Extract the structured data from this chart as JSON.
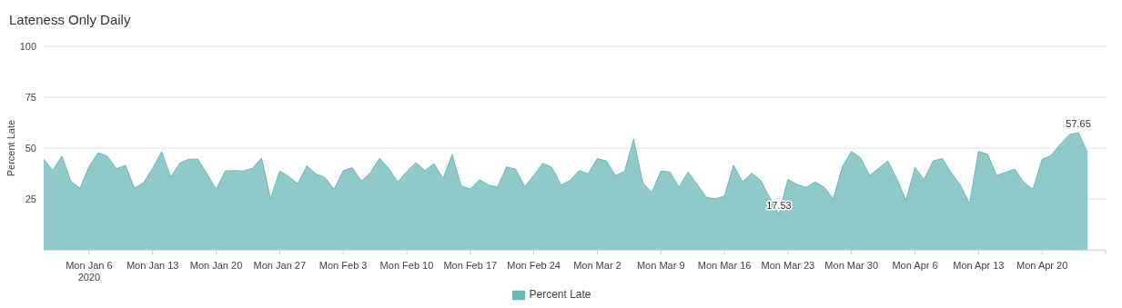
{
  "chart_data": {
    "type": "area",
    "title": "Lateness Only Daily",
    "ylabel": "Percent Late",
    "x": [
      "2020-01-01",
      "2020-01-02",
      "2020-01-03",
      "2020-01-04",
      "2020-01-05",
      "2020-01-06",
      "2020-01-07",
      "2020-01-08",
      "2020-01-09",
      "2020-01-10",
      "2020-01-11",
      "2020-01-12",
      "2020-01-13",
      "2020-01-14",
      "2020-01-15",
      "2020-01-16",
      "2020-01-17",
      "2020-01-18",
      "2020-01-19",
      "2020-01-20",
      "2020-01-21",
      "2020-01-22",
      "2020-01-23",
      "2020-01-24",
      "2020-01-25",
      "2020-01-26",
      "2020-01-27",
      "2020-01-28",
      "2020-01-29",
      "2020-01-30",
      "2020-01-31",
      "2020-02-01",
      "2020-02-02",
      "2020-02-03",
      "2020-02-04",
      "2020-02-05",
      "2020-02-06",
      "2020-02-07",
      "2020-02-08",
      "2020-02-09",
      "2020-02-10",
      "2020-02-11",
      "2020-02-12",
      "2020-02-13",
      "2020-02-14",
      "2020-02-15",
      "2020-02-16",
      "2020-02-17",
      "2020-02-18",
      "2020-02-19",
      "2020-02-20",
      "2020-02-21",
      "2020-02-22",
      "2020-02-23",
      "2020-02-24",
      "2020-02-25",
      "2020-02-26",
      "2020-02-27",
      "2020-02-28",
      "2020-02-29",
      "2020-03-01",
      "2020-03-02",
      "2020-03-03",
      "2020-03-04",
      "2020-03-05",
      "2020-03-06",
      "2020-03-07",
      "2020-03-08",
      "2020-03-09",
      "2020-03-10",
      "2020-03-11",
      "2020-03-12",
      "2020-03-13",
      "2020-03-14",
      "2020-03-15",
      "2020-03-16",
      "2020-03-17",
      "2020-03-18",
      "2020-03-19",
      "2020-03-20",
      "2020-03-21",
      "2020-03-22",
      "2020-03-23",
      "2020-03-24",
      "2020-03-25",
      "2020-03-26",
      "2020-03-27",
      "2020-03-28",
      "2020-03-29",
      "2020-03-30",
      "2020-03-31",
      "2020-04-01",
      "2020-04-02",
      "2020-04-03",
      "2020-04-04",
      "2020-04-05",
      "2020-04-06",
      "2020-04-07",
      "2020-04-08",
      "2020-04-09",
      "2020-04-10",
      "2020-04-11",
      "2020-04-12",
      "2020-04-13",
      "2020-04-14",
      "2020-04-15",
      "2020-04-16",
      "2020-04-17",
      "2020-04-18",
      "2020-04-19",
      "2020-04-20",
      "2020-04-21",
      "2020-04-22",
      "2020-04-23",
      "2020-04-24",
      "2020-04-25"
    ],
    "series": [
      {
        "name": "Percent Late",
        "color": "#6ab8b5",
        "values": [
          44.6,
          39.0,
          46.1,
          33.8,
          30.3,
          41.0,
          47.8,
          46.1,
          39.9,
          41.6,
          30.3,
          33.0,
          40.1,
          48.3,
          35.8,
          42.6,
          44.6,
          44.5,
          37.4,
          29.8,
          38.8,
          39.0,
          38.8,
          40.1,
          45.1,
          25.2,
          38.8,
          36.1,
          32.6,
          41.3,
          37.4,
          35.5,
          29.8,
          39.0,
          40.4,
          33.9,
          37.9,
          45.1,
          40.1,
          33.4,
          38.5,
          42.9,
          39.0,
          42.4,
          35.0,
          46.8,
          31.4,
          30.0,
          34.5,
          31.9,
          30.9,
          40.8,
          39.7,
          31.2,
          36.6,
          42.6,
          40.5,
          31.9,
          34.2,
          39.0,
          37.4,
          44.9,
          43.7,
          36.6,
          38.6,
          54.4,
          33.0,
          28.2,
          38.8,
          38.3,
          30.8,
          38.3,
          32.2,
          25.9,
          25.1,
          26.5,
          41.6,
          33.4,
          37.7,
          34.2,
          25.6,
          17.53,
          34.7,
          32.2,
          30.8,
          33.4,
          30.8,
          25.1,
          41.0,
          48.4,
          45.3,
          36.6,
          40.1,
          43.8,
          35.0,
          24.4,
          40.5,
          34.7,
          43.7,
          44.9,
          37.9,
          31.9,
          22.7,
          48.4,
          47.0,
          36.6,
          38.2,
          39.7,
          33.1,
          29.8,
          44.5,
          46.5,
          51.9,
          56.6,
          57.65,
          47.9
        ],
        "value_labels": [
          null,
          null,
          null,
          null,
          null,
          null,
          null,
          null,
          null,
          null,
          null,
          null,
          null,
          null,
          null,
          null,
          null,
          null,
          null,
          null,
          null,
          null,
          null,
          null,
          null,
          null,
          null,
          null,
          null,
          null,
          null,
          null,
          null,
          null,
          null,
          null,
          null,
          null,
          null,
          null,
          null,
          null,
          null,
          null,
          null,
          null,
          null,
          null,
          null,
          null,
          null,
          null,
          null,
          null,
          null,
          null,
          null,
          null,
          null,
          null,
          null,
          null,
          null,
          null,
          null,
          null,
          null,
          null,
          null,
          null,
          null,
          null,
          null,
          null,
          null,
          null,
          null,
          null,
          null,
          null,
          null,
          "17.53",
          null,
          null,
          null,
          null,
          null,
          null,
          null,
          null,
          null,
          null,
          null,
          null,
          null,
          null,
          null,
          null,
          null,
          null,
          null,
          null,
          null,
          null,
          null,
          null,
          null,
          null,
          null,
          null,
          null,
          null,
          null,
          null,
          "57.65",
          null
        ]
      }
    ],
    "xlim": [
      "2020-01-01",
      "2020-04-27"
    ],
    "xticks": [
      {
        "value": "2020-01-06",
        "label": "Mon Jan 6\n2020"
      },
      {
        "value": "2020-01-13",
        "label": "Mon Jan 13"
      },
      {
        "value": "2020-01-20",
        "label": "Mon Jan 20"
      },
      {
        "value": "2020-01-27",
        "label": "Mon Jan 27"
      },
      {
        "value": "2020-02-03",
        "label": "Mon Feb 3"
      },
      {
        "value": "2020-02-10",
        "label": "Mon Feb 10"
      },
      {
        "value": "2020-02-17",
        "label": "Mon Feb 17"
      },
      {
        "value": "2020-02-24",
        "label": "Mon Feb 24"
      },
      {
        "value": "2020-03-02",
        "label": "Mon Mar 2"
      },
      {
        "value": "2020-03-09",
        "label": "Mon Mar 9"
      },
      {
        "value": "2020-03-16",
        "label": "Mon Mar 16"
      },
      {
        "value": "2020-03-23",
        "label": "Mon Mar 23"
      },
      {
        "value": "2020-03-30",
        "label": "Mon Mar 30"
      },
      {
        "value": "2020-04-06",
        "label": "Mon Apr 6"
      },
      {
        "value": "2020-04-13",
        "label": "Mon Apr 13"
      },
      {
        "value": "2020-04-20",
        "label": "Mon Apr 20"
      },
      {
        "value": "2020-04-27",
        "label": null
      }
    ],
    "ylim": [
      0,
      100
    ],
    "yticks": [
      25,
      50,
      75,
      100
    ],
    "grid": "y",
    "legend": "bottom",
    "marker": "none"
  }
}
